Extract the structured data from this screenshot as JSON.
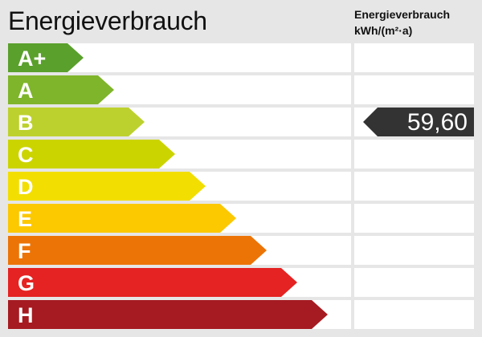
{
  "title": "Energieverbrauch",
  "unit_header": {
    "line1": "Energieverbrauch",
    "line2": "kWh/(m²·a)"
  },
  "chart_data": {
    "type": "bar",
    "categories": [
      "A+",
      "A",
      "B",
      "C",
      "D",
      "E",
      "F",
      "G",
      "H"
    ],
    "colors": [
      "#5aa02c",
      "#7fb52a",
      "#bdd12e",
      "#ccd400",
      "#f2de00",
      "#fcc800",
      "#ec7407",
      "#e42322",
      "#a51b21"
    ],
    "indicator": {
      "category": "B",
      "value": "59,60",
      "color": "#333333"
    }
  }
}
